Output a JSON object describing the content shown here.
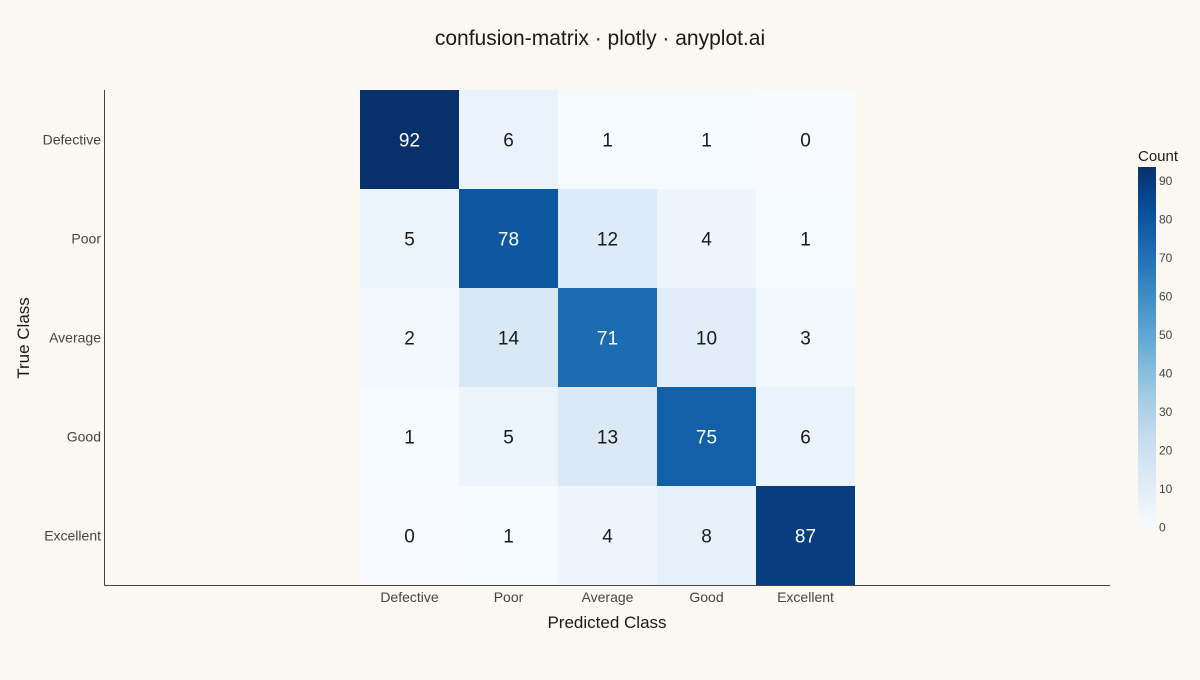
{
  "chart_data": {
    "type": "heatmap",
    "title": "confusion-matrix · plotly · anyplot.ai",
    "xlabel": "Predicted Class",
    "ylabel": "True Class",
    "x_categories": [
      "Defective",
      "Poor",
      "Average",
      "Good",
      "Excellent"
    ],
    "y_categories": [
      "Defective",
      "Poor",
      "Average",
      "Good",
      "Excellent"
    ],
    "z": [
      [
        92,
        6,
        1,
        1,
        0
      ],
      [
        5,
        78,
        12,
        4,
        1
      ],
      [
        2,
        14,
        71,
        10,
        3
      ],
      [
        1,
        5,
        13,
        75,
        6
      ],
      [
        0,
        1,
        4,
        8,
        87
      ]
    ],
    "colorbar": {
      "title": "Count",
      "range": [
        0,
        92
      ],
      "ticks": [
        0,
        10,
        20,
        30,
        40,
        50,
        60,
        70,
        80,
        90
      ]
    },
    "colorscale": "Blues",
    "colors": {
      "background": "#FAF8F1",
      "low": "#F7FBFF",
      "high": "#08306B",
      "dark_text": "#1A1A1A",
      "light_text": "#FFFFFF",
      "axis_line": "#444444"
    }
  }
}
